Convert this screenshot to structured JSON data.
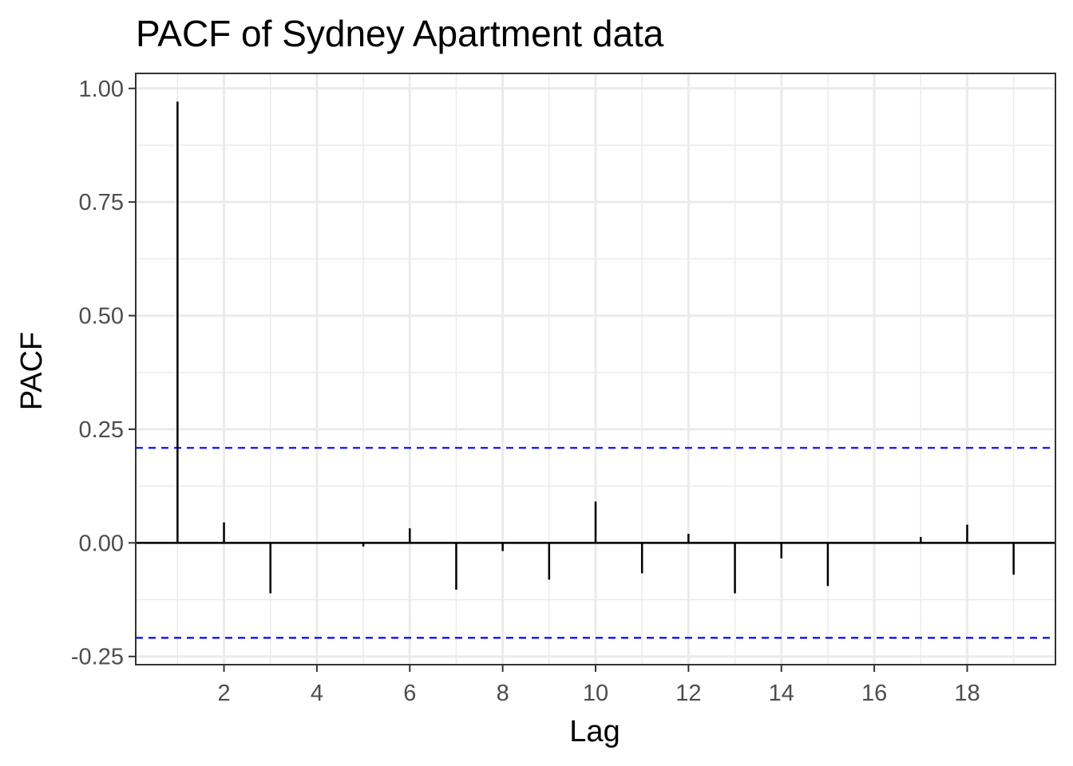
{
  "chart_data": {
    "type": "bar",
    "title": "PACF of Sydney Apartment data",
    "xlabel": "Lag",
    "ylabel": "PACF",
    "xlim": [
      0.1,
      19.9
    ],
    "ylim": [
      -0.268,
      1.033
    ],
    "x_ticks": [
      2,
      4,
      6,
      8,
      10,
      12,
      14,
      16,
      18
    ],
    "x_tick_labels": [
      "2",
      "4",
      "6",
      "8",
      "10",
      "12",
      "14",
      "16",
      "18"
    ],
    "y_ticks": [
      1.0,
      0.75,
      0.5,
      0.25,
      0.0,
      -0.25
    ],
    "y_tick_labels": [
      "1.00",
      "0.75",
      "0.50",
      "0.25",
      "0.00",
      "-0.25"
    ],
    "lags": [
      1,
      2,
      3,
      4,
      5,
      6,
      7,
      8,
      9,
      10,
      11,
      12,
      13,
      14,
      15,
      16,
      17,
      18,
      19
    ],
    "values": [
      0.971,
      0.045,
      -0.111,
      0.0,
      -0.008,
      0.032,
      -0.103,
      -0.018,
      -0.081,
      0.091,
      -0.067,
      0.02,
      -0.111,
      -0.034,
      -0.095,
      0.0,
      0.013,
      0.04,
      -0.07
    ],
    "confidence_bounds": [
      0.209,
      -0.209
    ],
    "grid": true,
    "legend": "none",
    "colors": {
      "bars": "#000000",
      "confidence_line": "#0000ff",
      "grid": "#ebebeb",
      "panel_border": "#333333",
      "tick_text": "#4d4d4d"
    }
  }
}
